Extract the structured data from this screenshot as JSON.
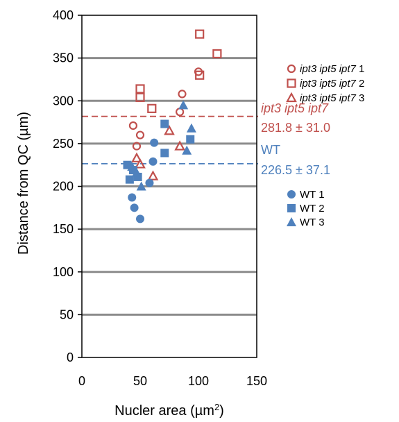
{
  "chart_data": {
    "type": "scatter",
    "xlabel": "Nucler area (µm",
    "xlabel_sup": "2",
    "xlabel_end": ")",
    "ylabel": "Distance from QC (µm)",
    "xlim": [
      0,
      150
    ],
    "ylim": [
      0,
      400
    ],
    "xticks": [
      0,
      50,
      100,
      150
    ],
    "yticks": [
      0,
      50,
      100,
      150,
      200,
      250,
      300,
      350,
      400
    ],
    "grid": "horizontal",
    "colors": {
      "mutant": "#c0504d",
      "wt": "#4f81bd"
    },
    "series": [
      {
        "name_italic": "ipt3 ipt5 ipt7",
        "name_suffix": " 1",
        "group": "mutant",
        "marker": "circle-open",
        "points": [
          [
            44,
            271
          ],
          [
            47,
            247
          ],
          [
            50,
            260
          ],
          [
            86,
            308
          ],
          [
            100,
            334
          ],
          [
            84,
            287
          ]
        ]
      },
      {
        "name_italic": "ipt3 ipt5 ipt7",
        "name_suffix": " 2",
        "group": "mutant",
        "marker": "square-open",
        "points": [
          [
            50,
            314
          ],
          [
            50,
            304
          ],
          [
            60,
            291
          ],
          [
            101,
            378
          ],
          [
            101,
            330
          ],
          [
            116,
            355
          ]
        ]
      },
      {
        "name_italic": "ipt3 ipt5 ipt7",
        "name_suffix": " 3",
        "group": "mutant",
        "marker": "triangle-open",
        "points": [
          [
            47,
            233
          ],
          [
            50,
            226
          ],
          [
            61,
            212
          ],
          [
            75,
            265
          ],
          [
            84,
            247
          ]
        ]
      },
      {
        "name": "WT 1",
        "group": "wt",
        "marker": "circle-filled",
        "points": [
          [
            43,
            187
          ],
          [
            45,
            175
          ],
          [
            50,
            162
          ],
          [
            58,
            204
          ],
          [
            61,
            229
          ],
          [
            62,
            251
          ]
        ]
      },
      {
        "name": "WT 2",
        "group": "wt",
        "marker": "square-filled",
        "points": [
          [
            39,
            225
          ],
          [
            41,
            208
          ],
          [
            44,
            219
          ],
          [
            48,
            211
          ],
          [
            71,
            273
          ],
          [
            71,
            239
          ],
          [
            93,
            255
          ]
        ]
      },
      {
        "name": "WT 3",
        "group": "wt",
        "marker": "triangle-filled",
        "points": [
          [
            43,
            223
          ],
          [
            47,
            216
          ],
          [
            51,
            200
          ],
          [
            87,
            295
          ],
          [
            90,
            242
          ],
          [
            94,
            268
          ]
        ]
      }
    ],
    "mean_lines": [
      {
        "label_italic": "ipt3 ipt5 ipt7",
        "value_text": "281.8 ± 31.0",
        "y": 281.8,
        "group": "mutant"
      },
      {
        "label": "WT",
        "value_text": "226.5 ± 37.1",
        "y": 226.5,
        "group": "wt"
      }
    ]
  }
}
